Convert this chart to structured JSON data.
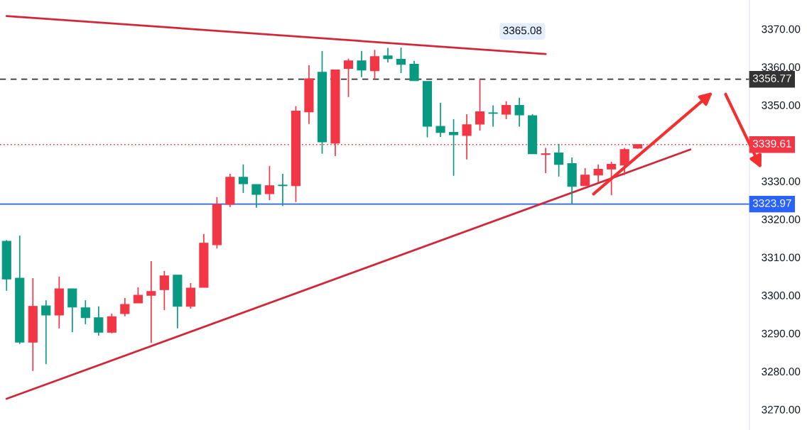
{
  "chart_data": {
    "type": "candlestick",
    "categories": [
      null,
      null,
      null,
      null,
      null,
      null,
      null,
      null,
      null,
      null,
      null,
      null,
      null,
      null,
      null,
      null,
      null,
      null,
      null,
      null,
      null,
      null,
      null,
      null,
      null,
      null,
      null,
      null,
      null,
      null,
      null,
      null,
      null,
      null,
      null,
      null,
      null,
      null,
      null,
      null,
      null,
      null,
      null,
      null,
      null,
      null,
      null,
      null,
      null,
      null,
      null,
      null,
      null,
      null,
      null,
      null,
      null
    ],
    "ohlc": [
      [
        3314.2,
        3314.5,
        3301.2,
        3304.3
      ],
      [
        3304.5,
        3315.7,
        3287.2,
        3287.7
      ],
      [
        3287.7,
        3304.5,
        3280.1,
        3297.1
      ],
      [
        3297.2,
        3298.7,
        3281.9,
        3294.8
      ],
      [
        3294.8,
        3304.9,
        3291.3,
        3301.7
      ],
      [
        3301.7,
        3301.7,
        3290.3,
        3296.9
      ],
      [
        3296.7,
        3298.7,
        3292.4,
        3294.1
      ],
      [
        3294.1,
        3297.1,
        3289.4,
        3290.3
      ],
      [
        3290.3,
        3295.2,
        3290.0,
        3294.4
      ],
      [
        3295.2,
        3299.3,
        3294.5,
        3297.6
      ],
      [
        3298.0,
        3302.1,
        3298.0,
        3300.0
      ],
      [
        3300.0,
        3309.0,
        3287.5,
        3301.0
      ],
      [
        3301.5,
        3306.4,
        3296.1,
        3305.1
      ],
      [
        3305.3,
        3305.3,
        3291.3,
        3297.1
      ],
      [
        3297.1,
        3303.2,
        3296.5,
        3301.9
      ],
      [
        3302.1,
        3316.1,
        3302.1,
        3313.7
      ],
      [
        3313.3,
        3325.8,
        3312.3,
        3323.9
      ],
      [
        3323.9,
        3331.9,
        3323.2,
        3331.0
      ],
      [
        3331.0,
        3334.4,
        3326.9,
        3329.3
      ],
      [
        3329.1,
        3329.1,
        3323.0,
        3326.5
      ],
      [
        3326.7,
        3334.0,
        3325.0,
        3328.8
      ],
      [
        3328.8,
        3331.9,
        3323.5,
        3328.8
      ],
      [
        3328.8,
        3349.7,
        3324.5,
        3348.4
      ],
      [
        3348.2,
        3360.5,
        3345.0,
        3356.9
      ],
      [
        3358.6,
        3364.2,
        3337.2,
        3340.3
      ],
      [
        3340.0,
        3359.2,
        3336.6,
        3359.2
      ],
      [
        3359.6,
        3362.2,
        3352.1,
        3361.6
      ],
      [
        3361.6,
        3364.2,
        3357.3,
        3359.2
      ],
      [
        3359.0,
        3364.5,
        3356.8,
        3362.7
      ],
      [
        3362.9,
        3365.0,
        3361.2,
        3362.2
      ],
      [
        3362.0,
        3365.08,
        3358.4,
        3360.7
      ],
      [
        3360.7,
        3361.6,
        3356.4,
        3356.4
      ],
      [
        3356.2,
        3356.2,
        3341.5,
        3344.4
      ],
      [
        3344.4,
        3350.6,
        3341.6,
        3342.8
      ],
      [
        3342.8,
        3346.3,
        3331.4,
        3342.2
      ],
      [
        3342.0,
        3347.6,
        3335.7,
        3344.8
      ],
      [
        3345.0,
        3356.8,
        3343.3,
        3348.2
      ],
      [
        3347.8,
        3349.9,
        3344.3,
        3347.8
      ],
      [
        3347.6,
        3351.0,
        3346.3,
        3349.9
      ],
      [
        3349.9,
        3351.9,
        3344.3,
        3347.4
      ],
      [
        3347.2,
        3347.6,
        3337.2,
        3337.2
      ],
      [
        3337.0,
        3338.7,
        3332.1,
        3337.2
      ],
      [
        3337.4,
        3339.8,
        3331.2,
        3334.4
      ],
      [
        3334.6,
        3336.2,
        3324.1,
        3328.6
      ],
      [
        3328.8,
        3333.4,
        3328.8,
        3331.6
      ],
      [
        3331.6,
        3334.4,
        3329.7,
        3333.1
      ],
      [
        3333.2,
        3335.1,
        3326.3,
        3334.4
      ],
      [
        3334.2,
        3338.7,
        3331.6,
        3338.3
      ],
      [
        3338.7,
        3339.61,
        3338.5,
        3339.61
      ],
      null,
      null,
      null,
      null,
      null,
      null,
      null,
      null
    ],
    "colors": [
      "#089981",
      "#089981",
      "#f23645",
      "#089981",
      "#f23645",
      "#089981",
      "#089981",
      "#089981",
      "#f23645",
      "#f23645",
      "#f23645",
      "#f23645",
      "#f23645",
      "#089981",
      "#f23645",
      "#f23645",
      "#f23645",
      "#f23645",
      "#089981",
      "#089981",
      "#f23645",
      "#089981",
      "#f23645",
      "#f23645",
      "#089981",
      "#f23645",
      "#f23645",
      "#089981",
      "#f23645",
      "#089981",
      "#089981",
      "#089981",
      "#089981",
      "#089981",
      "#089981",
      "#f23645",
      "#f23645",
      "#089981",
      "#f23645",
      "#089981",
      "#089981",
      "#f23645",
      "#089981",
      "#089981",
      "#f23645",
      "#f23645",
      "#f23645",
      "#f23645",
      "#f23645",
      null,
      null,
      null,
      null,
      null,
      null,
      null,
      null
    ],
    "series": [
      {
        "type": "line",
        "color": "#d0283a",
        "values": [
          3373.4,
          null,
          null,
          null,
          null,
          null,
          null,
          null,
          null,
          null,
          null,
          null,
          null,
          null,
          null,
          null,
          null,
          null,
          null,
          null,
          null,
          null,
          null,
          null,
          null,
          null,
          null,
          null,
          null,
          null,
          null,
          null,
          null,
          null,
          null,
          null,
          null,
          null,
          null,
          null,
          null,
          3363.4,
          null,
          null,
          null,
          null,
          null,
          null,
          null,
          null,
          null,
          null,
          null,
          null,
          null,
          null,
          null
        ]
      },
      {
        "type": "line",
        "color": "#d0283a",
        "values": [
          3272.8,
          null,
          null,
          null,
          null,
          null,
          null,
          null,
          null,
          null,
          null,
          null,
          null,
          null,
          null,
          null,
          null,
          null,
          null,
          null,
          null,
          null,
          null,
          null,
          null,
          null,
          null,
          null,
          null,
          null,
          null,
          null,
          null,
          null,
          null,
          null,
          null,
          null,
          null,
          null,
          null,
          null,
          null,
          null,
          null,
          null,
          null,
          null,
          null,
          null,
          null,
          null,
          3338.3,
          null,
          null,
          null,
          null
        ]
      }
    ],
    "ref_lines": [
      {
        "axis": "y",
        "value": 3356.77,
        "label": "3356.77",
        "color": "#333333",
        "line_style": "dashed"
      },
      {
        "axis": "y",
        "value": 3339.61,
        "label": "3339.61",
        "color": "#f23645",
        "line_style": "dotted"
      },
      {
        "axis": "y",
        "value": 3323.97,
        "label": "3323.97",
        "color": "#2962ff",
        "line_style": "solid"
      }
    ],
    "annotations": [
      "3365.08"
    ],
    "ylim": [
      3264.6,
      3377.6
    ],
    "yticks": [
      {
        "value": 3270,
        "label": "3270.00"
      },
      {
        "value": 3280,
        "label": "3280.00"
      },
      {
        "value": 3290,
        "label": "3290.00"
      },
      {
        "value": 3300,
        "label": "3300.00"
      },
      {
        "value": 3310,
        "label": "3310.00"
      },
      {
        "value": 3320,
        "label": "3320.00"
      },
      {
        "value": 3330,
        "label": "3330.00"
      },
      {
        "value": 3340,
        "label": null
      },
      {
        "value": 3350,
        "label": "3350.00"
      },
      {
        "value": 3360,
        "label": "3360.00"
      },
      {
        "value": 3370,
        "label": "3370.00"
      }
    ],
    "tick_labels": "y",
    "grid": false,
    "legend": false
  }
}
